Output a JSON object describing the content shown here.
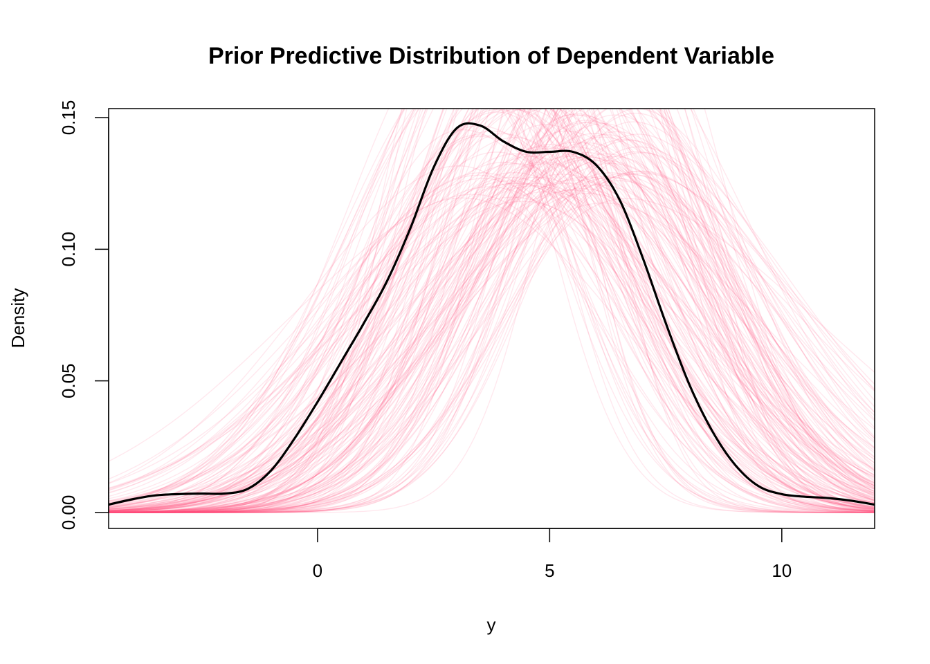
{
  "chart_data": {
    "type": "line",
    "title": "Prior Predictive Distribution of Dependent Variable",
    "xlabel": "y",
    "ylabel": "Density",
    "xlim": [
      -4.5,
      12
    ],
    "ylim": [
      0,
      0.15
    ],
    "x_ticks": [
      {
        "value": 0,
        "label": "0"
      },
      {
        "value": 5,
        "label": "5"
      },
      {
        "value": 10,
        "label": "10"
      }
    ],
    "y_ticks": [
      {
        "value": 0.0,
        "label": "0.00"
      },
      {
        "value": 0.05,
        "label": "0.05"
      },
      {
        "value": 0.1,
        "label": "0.10"
      },
      {
        "value": 0.15,
        "label": "0.15"
      }
    ],
    "grid": false,
    "legend": "none",
    "colors": {
      "observed": "#000000",
      "prior_draws": "#ff4d7a"
    },
    "series": [
      {
        "role": "observed-density",
        "x": [
          -4.5,
          -4.0,
          -3.5,
          -3.0,
          -2.5,
          -2.0,
          -1.5,
          -1.0,
          -0.5,
          0.0,
          0.5,
          1.0,
          1.5,
          2.0,
          2.5,
          3.0,
          3.5,
          4.0,
          4.5,
          5.0,
          5.5,
          6.0,
          6.5,
          7.0,
          7.5,
          8.0,
          8.5,
          9.0,
          9.5,
          10.0,
          10.5,
          11.0,
          11.5,
          12.0
        ],
        "values": [
          0.003,
          0.005,
          0.0065,
          0.007,
          0.0072,
          0.0072,
          0.009,
          0.016,
          0.028,
          0.042,
          0.057,
          0.072,
          0.088,
          0.108,
          0.131,
          0.146,
          0.147,
          0.141,
          0.137,
          0.137,
          0.137,
          0.132,
          0.119,
          0.097,
          0.072,
          0.049,
          0.031,
          0.018,
          0.01,
          0.007,
          0.006,
          0.0055,
          0.0045,
          0.003
        ]
      }
    ],
    "prior_draws": {
      "description_count": 180,
      "mean_range": [
        3.0,
        7.0
      ],
      "sd_range": [
        1.9,
        3.4
      ]
    }
  }
}
